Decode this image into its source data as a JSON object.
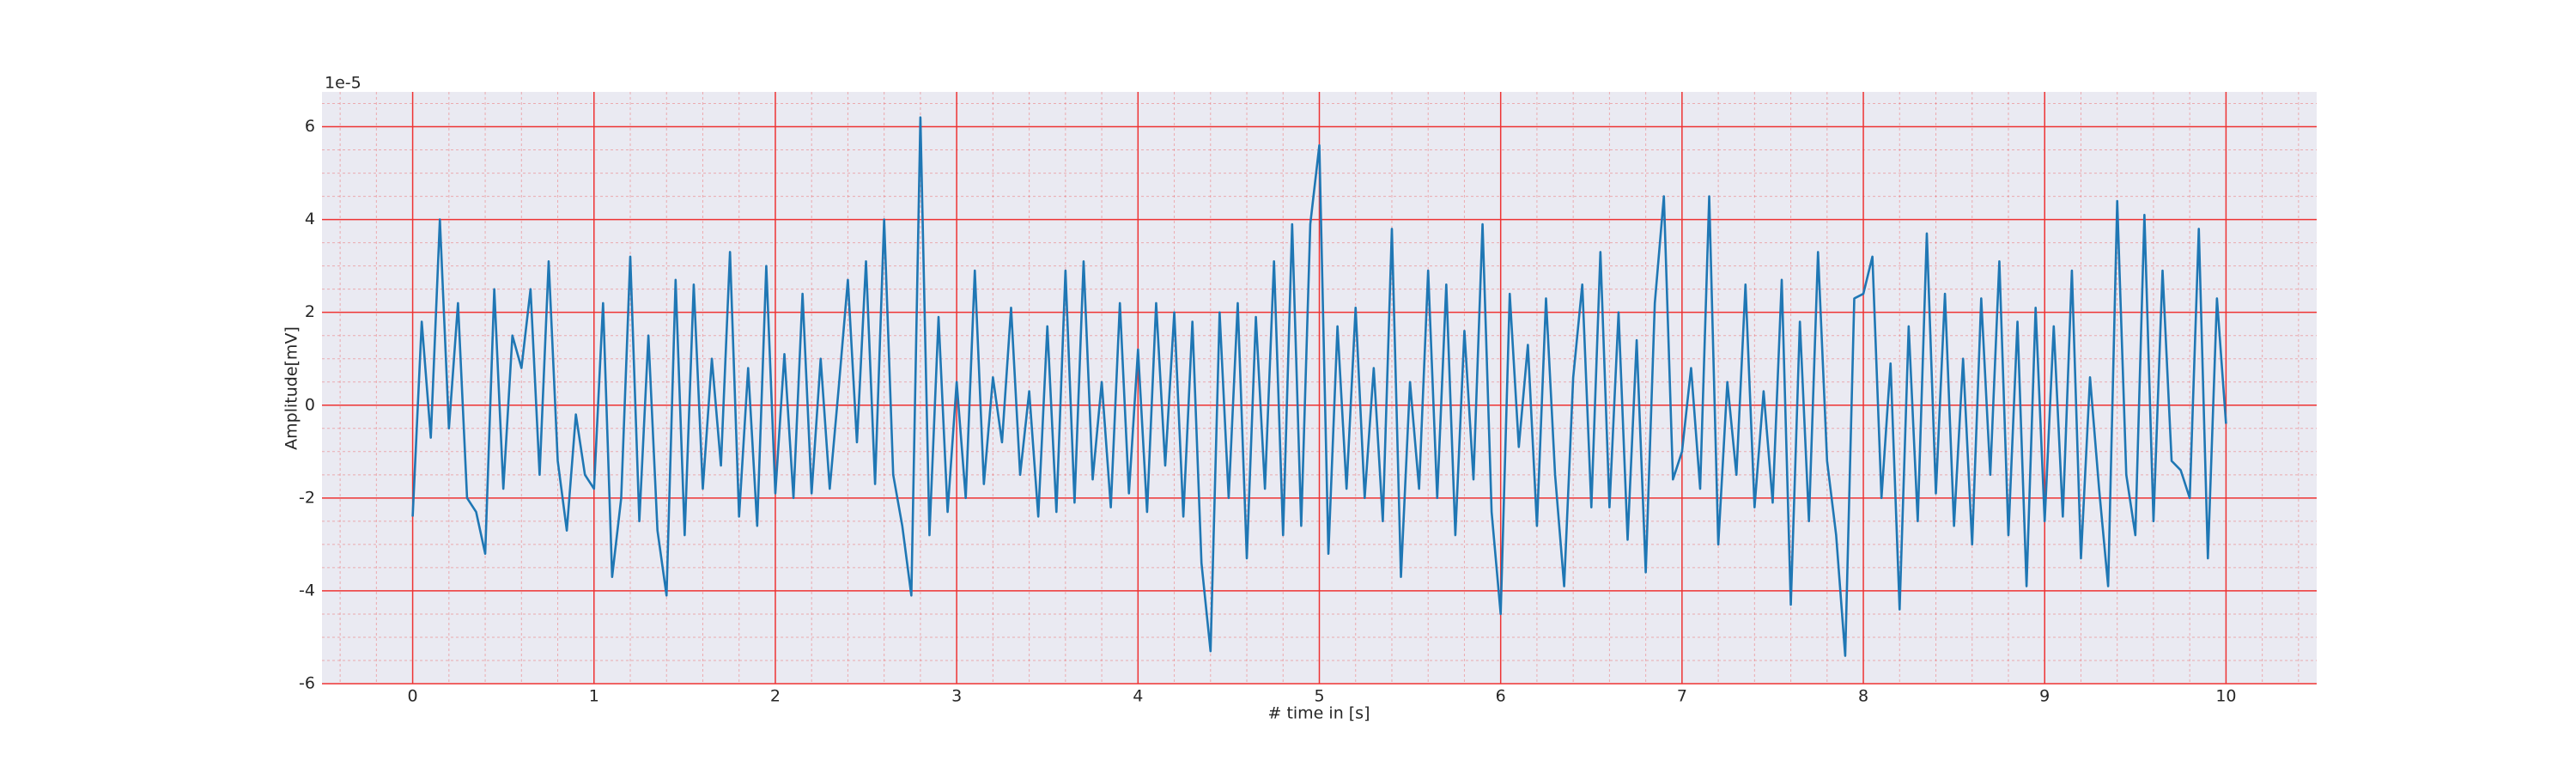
{
  "chart_data": {
    "type": "line",
    "xlabel": "# time in [s]",
    "ylabel": "Amplitude[mV]",
    "y_offset_label": "1e-5",
    "color": "#1f77b4",
    "x": [
      0,
      0.05,
      0.1,
      0.15,
      0.2,
      0.25,
      0.3,
      0.35,
      0.4,
      0.45,
      0.5,
      0.55,
      0.6,
      0.65,
      0.7,
      0.75,
      0.8,
      0.85,
      0.9,
      0.95,
      1,
      1.05,
      1.1,
      1.15,
      1.2,
      1.25,
      1.3,
      1.35,
      1.4,
      1.45,
      1.5,
      1.55,
      1.6,
      1.65,
      1.7,
      1.75,
      1.8,
      1.85,
      1.9,
      1.95,
      2,
      2.05,
      2.1,
      2.15,
      2.2,
      2.25,
      2.3,
      2.35,
      2.4,
      2.45,
      2.5,
      2.55,
      2.6,
      2.65,
      2.7,
      2.75,
      2.8,
      2.85,
      2.9,
      2.95,
      3,
      3.05,
      3.1,
      3.15,
      3.2,
      3.25,
      3.3,
      3.35,
      3.4,
      3.45,
      3.5,
      3.55,
      3.6,
      3.65,
      3.7,
      3.75,
      3.8,
      3.85,
      3.9,
      3.95,
      4,
      4.05,
      4.1,
      4.15,
      4.2,
      4.25,
      4.3,
      4.35,
      4.4,
      4.45,
      4.5,
      4.55,
      4.6,
      4.65,
      4.7,
      4.75,
      4.8,
      4.85,
      4.9,
      4.95,
      5,
      5.05,
      5.1,
      5.15,
      5.2,
      5.25,
      5.3,
      5.35,
      5.4,
      5.45,
      5.5,
      5.55,
      5.6,
      5.65,
      5.7,
      5.75,
      5.8,
      5.85,
      5.9,
      5.95,
      6,
      6.05,
      6.1,
      6.15,
      6.2,
      6.25,
      6.3,
      6.35,
      6.4,
      6.45,
      6.5,
      6.55,
      6.6,
      6.65,
      6.7,
      6.75,
      6.8,
      6.85,
      6.9,
      6.95,
      7,
      7.05,
      7.1,
      7.15,
      7.2,
      7.25,
      7.3,
      7.35,
      7.4,
      7.45,
      7.5,
      7.55,
      7.6,
      7.65,
      7.7,
      7.75,
      7.8,
      7.85,
      7.9,
      7.95,
      8,
      8.05,
      8.1,
      8.15,
      8.2,
      8.25,
      8.3,
      8.35,
      8.4,
      8.45,
      8.5,
      8.55,
      8.6,
      8.65,
      8.7,
      8.75,
      8.8,
      8.85,
      8.9,
      8.95,
      9,
      9.05,
      9.1,
      9.15,
      9.2,
      9.25,
      9.3,
      9.35,
      9.4,
      9.45,
      9.5,
      9.55,
      9.6,
      9.65,
      9.7,
      9.75,
      9.8,
      9.85,
      9.9,
      9.95,
      10
    ],
    "values": [
      -2.4,
      1.8,
      -0.7,
      4.0,
      -0.5,
      2.2,
      -2.0,
      -2.3,
      -3.2,
      2.5,
      -1.8,
      1.5,
      0.8,
      2.5,
      -1.5,
      3.1,
      -1.2,
      -2.7,
      -0.2,
      -1.5,
      -1.8,
      2.2,
      -3.7,
      -2.0,
      3.2,
      -2.5,
      1.5,
      -2.7,
      -4.1,
      2.7,
      -2.8,
      2.6,
      -1.8,
      1.0,
      -1.3,
      3.3,
      -2.4,
      0.8,
      -2.6,
      3.0,
      -1.9,
      1.1,
      -2.0,
      2.4,
      -1.9,
      1.0,
      -1.8,
      0.4,
      2.7,
      -0.8,
      3.1,
      -1.7,
      4.0,
      -1.5,
      -2.6,
      -4.1,
      6.2,
      -2.8,
      1.9,
      -2.3,
      0.5,
      -2.0,
      2.9,
      -1.7,
      0.6,
      -0.8,
      2.1,
      -1.5,
      0.3,
      -2.4,
      1.7,
      -2.3,
      2.9,
      -2.1,
      3.1,
      -1.6,
      0.5,
      -2.2,
      2.2,
      -1.9,
      1.2,
      -2.3,
      2.2,
      -1.3,
      2.0,
      -2.4,
      1.8,
      -3.4,
      -5.3,
      2.0,
      -2.0,
      2.2,
      -3.3,
      1.9,
      -1.8,
      3.1,
      -2.8,
      3.9,
      -2.6,
      3.9,
      5.6,
      -3.2,
      1.7,
      -1.8,
      2.1,
      -2.0,
      0.8,
      -2.5,
      3.8,
      -3.7,
      0.5,
      -1.8,
      2.9,
      -2.0,
      2.6,
      -2.8,
      1.6,
      -1.6,
      3.9,
      -2.3,
      -4.5,
      2.4,
      -0.9,
      1.3,
      -2.6,
      2.3,
      -1.5,
      -3.9,
      0.6,
      2.6,
      -2.2,
      3.3,
      -2.2,
      2.0,
      -2.9,
      1.4,
      -3.6,
      2.2,
      4.5,
      -1.6,
      -1.0,
      0.8,
      -1.8,
      4.5,
      -3.0,
      0.5,
      -1.5,
      2.6,
      -2.2,
      0.3,
      -2.1,
      2.7,
      -4.3,
      1.8,
      -2.5,
      3.3,
      -1.2,
      -2.8,
      -5.4,
      2.3,
      2.4,
      3.2,
      -2.0,
      0.9,
      -4.4,
      1.7,
      -2.5,
      3.7,
      -1.9,
      2.4,
      -2.6,
      1.0,
      -3.0,
      2.3,
      -1.5,
      3.1,
      -2.8,
      1.8,
      -3.9,
      2.1,
      -2.5,
      1.7,
      -2.4,
      2.9,
      -3.3,
      0.6,
      -1.8,
      -3.9,
      4.4,
      -1.5,
      -2.8,
      4.1,
      -2.5,
      2.9,
      -1.2,
      -1.4,
      -2.0,
      3.8,
      -3.3,
      2.3,
      -0.4
    ],
    "xlim": [
      -0.5,
      10.5
    ],
    "ylim": [
      -6,
      6.75
    ],
    "xticks": [
      0,
      1,
      2,
      3,
      4,
      5,
      6,
      7,
      8,
      9,
      10
    ],
    "yticks": [
      -6,
      -4,
      -2,
      0,
      2,
      4,
      6
    ],
    "grid": true,
    "grid_color": "#ee3333",
    "background": "#eaeaf2"
  }
}
